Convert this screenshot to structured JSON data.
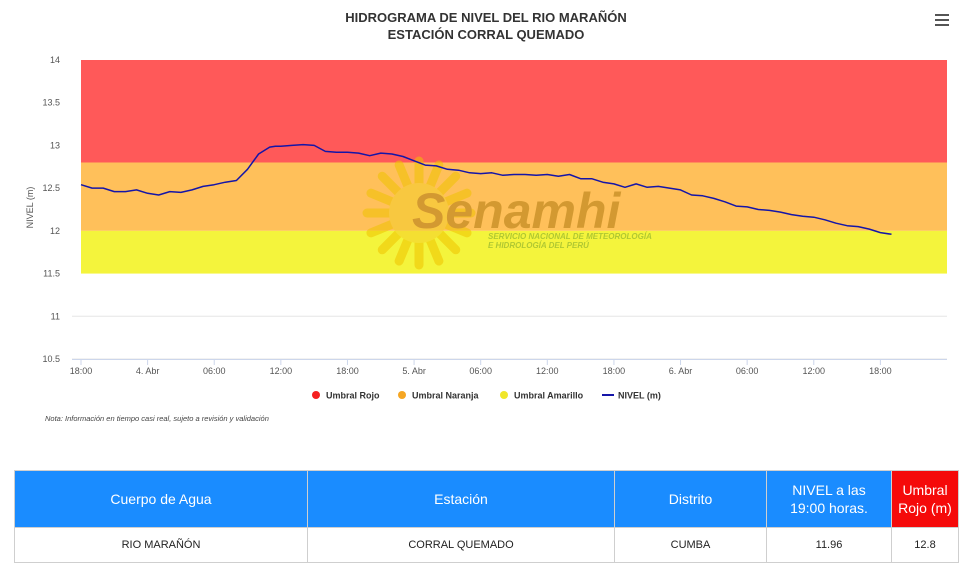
{
  "chart_data": {
    "type": "line",
    "title": "HIDROGRAMA DE NIVEL DEL RIO MARAÑÓN",
    "subtitle": "ESTACIÓN CORRAL QUEMADO",
    "ylabel": "NIVEL (m)",
    "xlabel": "",
    "ylim": [
      10.5,
      14
    ],
    "yticks": [
      "10.5",
      "11",
      "11.5",
      "12",
      "12.5",
      "13",
      "13.5",
      "14"
    ],
    "xlim": [
      0,
      78
    ],
    "xticks": [
      {
        "hour": 0,
        "label": "18:00"
      },
      {
        "hour": 6,
        "label": "4. Abr"
      },
      {
        "hour": 12,
        "label": "06:00"
      },
      {
        "hour": 18,
        "label": "12:00"
      },
      {
        "hour": 24,
        "label": "18:00"
      },
      {
        "hour": 30,
        "label": "5. Abr"
      },
      {
        "hour": 36,
        "label": "06:00"
      },
      {
        "hour": 42,
        "label": "12:00"
      },
      {
        "hour": 48,
        "label": "18:00"
      },
      {
        "hour": 54,
        "label": "6. Abr"
      },
      {
        "hour": 60,
        "label": "06:00"
      },
      {
        "hour": 66,
        "label": "12:00"
      },
      {
        "hour": 72,
        "label": "18:00"
      }
    ],
    "bands": [
      {
        "name": "Umbral Rojo",
        "from": 12.8,
        "to": 14.0,
        "color": "#ff5959"
      },
      {
        "name": "Umbral Naranja",
        "from": 12.0,
        "to": 12.8,
        "color": "#ffc05a"
      },
      {
        "name": "Umbral Amarillo",
        "from": 11.5,
        "to": 12.0,
        "color": "#f4f43c"
      }
    ],
    "series": [
      {
        "name": "NIVEL (m)",
        "color": "#1515a8",
        "x": [
          0,
          1,
          2,
          3,
          4,
          5,
          6,
          7,
          8,
          9,
          10,
          11,
          12,
          13,
          14,
          15,
          16,
          17,
          17.5,
          18,
          19,
          20,
          21,
          22,
          23,
          24,
          25,
          26,
          27,
          28,
          29,
          30,
          31,
          32,
          33,
          34,
          35,
          36,
          37,
          38,
          39,
          40,
          41,
          42,
          43,
          44,
          45,
          46,
          47,
          48,
          49,
          50,
          51,
          52,
          53,
          54,
          55,
          56,
          57,
          58,
          59,
          60,
          61,
          62,
          63,
          64,
          65,
          66,
          67,
          68,
          69,
          70,
          71,
          72,
          73
        ],
        "y": [
          12.54,
          12.5,
          12.5,
          12.46,
          12.46,
          12.48,
          12.44,
          12.42,
          12.46,
          12.45,
          12.48,
          12.52,
          12.54,
          12.57,
          12.59,
          12.72,
          12.9,
          12.98,
          12.99,
          12.99,
          13.0,
          13.01,
          13.0,
          12.93,
          12.92,
          12.92,
          12.91,
          12.88,
          12.91,
          12.9,
          12.87,
          12.82,
          12.77,
          12.76,
          12.72,
          12.71,
          12.68,
          12.67,
          12.68,
          12.65,
          12.66,
          12.66,
          12.65,
          12.66,
          12.64,
          12.66,
          12.61,
          12.61,
          12.57,
          12.55,
          12.51,
          12.55,
          12.51,
          12.52,
          12.5,
          12.48,
          12.42,
          12.41,
          12.38,
          12.34,
          12.29,
          12.28,
          12.25,
          12.24,
          12.22,
          12.19,
          12.17,
          12.16,
          12.13,
          12.09,
          12.06,
          12.05,
          12.02,
          11.98,
          11.96
        ]
      }
    ],
    "legend_position": "bottom-center",
    "grid": true,
    "grid_axis": "y"
  },
  "legend": [
    {
      "label": "Umbral Rojo",
      "color": "#f52020",
      "kind": "dot"
    },
    {
      "label": "Umbral Naranja",
      "color": "#f5a623",
      "kind": "dot"
    },
    {
      "label": "Umbral Amarillo",
      "color": "#f0e62a",
      "kind": "dot"
    },
    {
      "label": "NIVEL (m)",
      "color": "#1515a8",
      "kind": "line"
    }
  ],
  "watermark": {
    "name": "Senamhi",
    "line1": "SERVICIO NACIONAL DE METEOROLOGÍA",
    "line2": "E HIDROLOGÍA DEL PERÚ"
  },
  "note": "Nota: Información en tiempo casi real, sujeto a revisión y validación",
  "menu_icon": "hamburger-menu-icon",
  "table": {
    "headers": [
      "Cuerpo de Agua",
      "Estación",
      "Distrito",
      "NIVEL a las 19:00 horas.",
      "Umbral Rojo (m)"
    ],
    "row": [
      "RIO MARAÑÓN",
      "CORRAL QUEMADO",
      "CUMBA",
      "11.96",
      "12.8"
    ]
  }
}
